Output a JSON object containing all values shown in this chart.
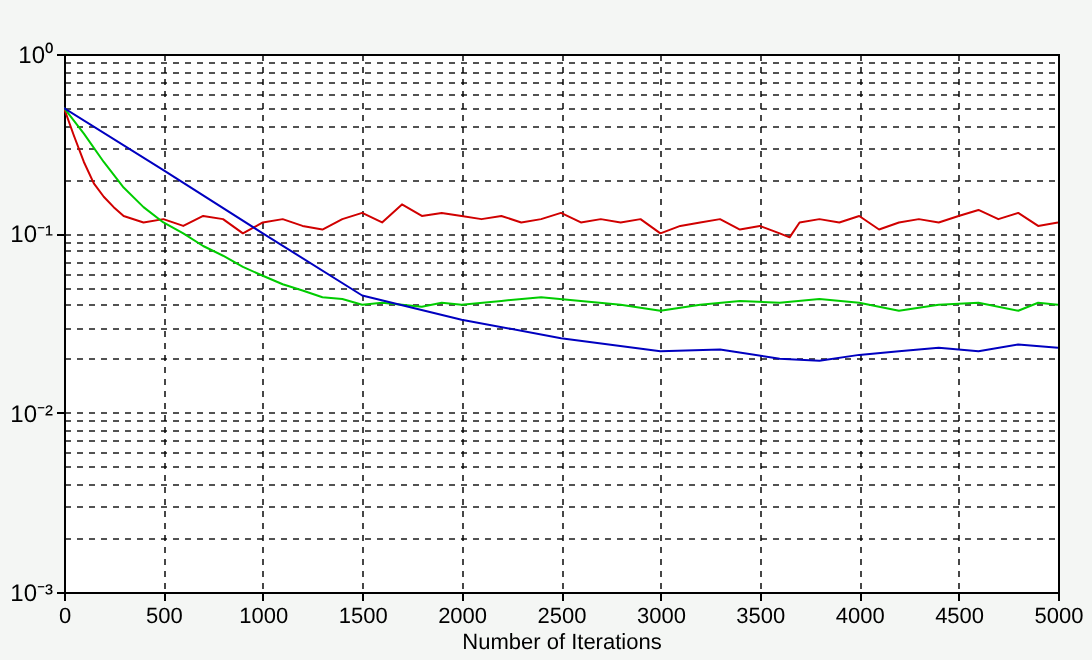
{
  "chart_data": {
    "type": "line",
    "xlabel": "Number of Iterations",
    "log": "y",
    "grid": true,
    "line_style": "solid",
    "marker": "none",
    "xlim": [
      0,
      5000
    ],
    "xticks": [
      0,
      500,
      1000,
      1500,
      2000,
      2500,
      3000,
      3500,
      4000,
      4500,
      5000
    ],
    "ylim": [
      0.001,
      1
    ],
    "yticks": [
      {
        "value": 0.001,
        "label": "10⁻³"
      },
      {
        "value": 0.01,
        "label": "10⁻²"
      },
      {
        "value": 0.1,
        "label": "10⁻¹"
      },
      {
        "value": 1,
        "label": "10⁰"
      }
    ],
    "series": [
      {
        "color": "#d00000",
        "x": [
          0,
          50,
          100,
          150,
          200,
          250,
          300,
          400,
          500,
          600,
          700,
          800,
          900,
          1000,
          1100,
          1200,
          1300,
          1400,
          1500,
          1600,
          1700,
          1800,
          1900,
          2000,
          2100,
          2200,
          2300,
          2400,
          2500,
          2600,
          2700,
          2800,
          2900,
          3000,
          3100,
          3200,
          3300,
          3400,
          3500,
          3600,
          3650,
          3700,
          3800,
          3900,
          4000,
          4100,
          4200,
          4300,
          4400,
          4500,
          4600,
          4700,
          4800,
          4900,
          5000
        ],
        "values": [
          0.5,
          0.35,
          0.25,
          0.19,
          0.16,
          0.14,
          0.125,
          0.115,
          0.12,
          0.11,
          0.125,
          0.12,
          0.1,
          0.115,
          0.12,
          0.11,
          0.105,
          0.12,
          0.13,
          0.115,
          0.145,
          0.125,
          0.13,
          0.125,
          0.12,
          0.125,
          0.115,
          0.12,
          0.13,
          0.115,
          0.12,
          0.115,
          0.12,
          0.1,
          0.11,
          0.115,
          0.12,
          0.105,
          0.11,
          0.1,
          0.095,
          0.115,
          0.12,
          0.115,
          0.125,
          0.105,
          0.115,
          0.12,
          0.115,
          0.125,
          0.135,
          0.12,
          0.13,
          0.11,
          0.115
        ]
      },
      {
        "color": "#00cc00",
        "x": [
          0,
          100,
          200,
          300,
          400,
          500,
          600,
          700,
          800,
          900,
          1000,
          1100,
          1200,
          1300,
          1400,
          1500,
          1600,
          1700,
          1800,
          1900,
          2000,
          2200,
          2400,
          2600,
          2800,
          3000,
          3200,
          3400,
          3600,
          3800,
          4000,
          4200,
          4400,
          4600,
          4800,
          4900,
          5000
        ],
        "values": [
          0.5,
          0.36,
          0.25,
          0.18,
          0.14,
          0.115,
          0.1,
          0.085,
          0.075,
          0.065,
          0.058,
          0.052,
          0.048,
          0.044,
          0.043,
          0.04,
          0.041,
          0.04,
          0.039,
          0.041,
          0.04,
          0.042,
          0.044,
          0.042,
          0.04,
          0.037,
          0.04,
          0.042,
          0.041,
          0.043,
          0.041,
          0.037,
          0.04,
          0.041,
          0.037,
          0.041,
          0.04
        ]
      },
      {
        "color": "#0000c0",
        "x": [
          0,
          500,
          1000,
          1500,
          2000,
          2500,
          3000,
          3300,
          3600,
          3800,
          4000,
          4200,
          4400,
          4600,
          4800,
          5000
        ],
        "values": [
          0.5,
          0.225,
          0.1,
          0.045,
          0.033,
          0.026,
          0.022,
          0.0225,
          0.02,
          0.0195,
          0.021,
          0.022,
          0.023,
          0.022,
          0.024,
          0.023
        ]
      }
    ]
  }
}
